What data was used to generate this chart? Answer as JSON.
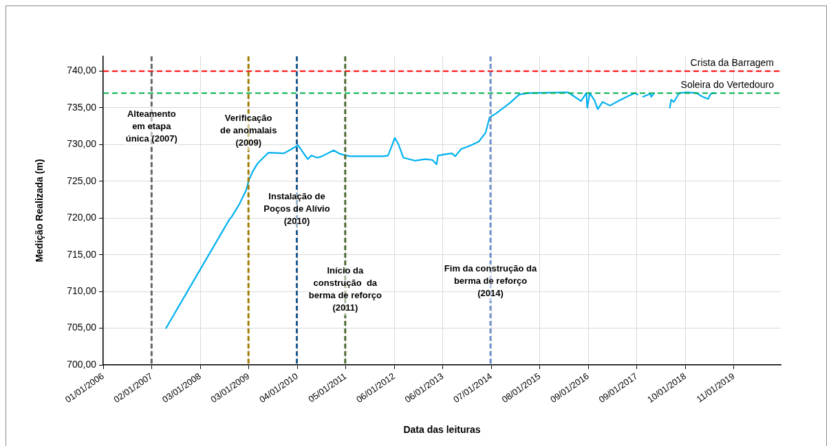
{
  "chart_data": {
    "type": "line",
    "xlabel": "Data das leituras",
    "ylabel": "Medição Realizada (m)",
    "xlim": [
      "2006-01-01",
      "2019-12-31"
    ],
    "xticks": [
      {
        "value": "2006-01-01",
        "label": "01/01/2006"
      },
      {
        "value": "2007-01-02",
        "label": "02/01/2007"
      },
      {
        "value": "2008-01-03",
        "label": "03/01/2008"
      },
      {
        "value": "2009-01-03",
        "label": "03/01/2009"
      },
      {
        "value": "2010-01-04",
        "label": "04/01/2010"
      },
      {
        "value": "2011-01-05",
        "label": "05/01/2011"
      },
      {
        "value": "2012-01-06",
        "label": "06/01/2012"
      },
      {
        "value": "2013-01-06",
        "label": "06/01/2013"
      },
      {
        "value": "2014-01-07",
        "label": "07/01/2014"
      },
      {
        "value": "2015-01-08",
        "label": "08/01/2015"
      },
      {
        "value": "2016-01-09",
        "label": "09/01/2016"
      },
      {
        "value": "2017-01-09",
        "label": "09/01/2017"
      },
      {
        "value": "2018-01-10",
        "label": "10/01/2018"
      },
      {
        "value": "2019-01-11",
        "label": "11/01/2019"
      }
    ],
    "ylim": [
      700,
      742
    ],
    "yticks": [
      {
        "value": 700,
        "label": "700,00"
      },
      {
        "value": 705,
        "label": "705,00"
      },
      {
        "value": 710,
        "label": "710,00"
      },
      {
        "value": 715,
        "label": "715,00"
      },
      {
        "value": 720,
        "label": "720,00"
      },
      {
        "value": 725,
        "label": "725,00"
      },
      {
        "value": 730,
        "label": "730,00"
      },
      {
        "value": 735,
        "label": "735,00"
      },
      {
        "value": 740,
        "label": "740,00"
      }
    ],
    "grid": true,
    "legend": false,
    "marker": "none",
    "line_style": "solid",
    "series": [
      {
        "color": "#00b0f0",
        "x": [
          "2007-04-20",
          "2008-08-10",
          "2008-08-25",
          "2008-10-25",
          "2008-12-15",
          "2009-01-03",
          "2009-02-01",
          "2009-03-10",
          "2009-06-01",
          "2009-09-25",
          "2009-11-15",
          "2009-12-30",
          "2010-01-10",
          "2010-02-25",
          "2010-03-25",
          "2010-04-20",
          "2010-06-05",
          "2010-07-10",
          "2010-10-05",
          "2010-11-25",
          "2011-02-05",
          "2011-05-05",
          "2011-08-01",
          "2011-10-15",
          "2011-11-20",
          "2011-12-10",
          "2012-01-10",
          "2012-02-05",
          "2012-03-15",
          "2012-06-10",
          "2012-08-25",
          "2012-10-20",
          "2012-11-20",
          "2012-12-01",
          "2013-02-05",
          "2013-03-15",
          "2013-04-10",
          "2013-05-25",
          "2013-07-25",
          "2013-10-05",
          "2013-11-25",
          "2013-12-25",
          "2014-02-10",
          "2014-05-30",
          "2014-08-05",
          "2014-10-15",
          "2015-08-10",
          "2015-09-20",
          "2015-11-15",
          "2015-12-25",
          "2016-01-01",
          "2016-01-20",
          "2016-02-25",
          "2016-03-20",
          "2016-04-25",
          "2016-06-20",
          "2016-08-20",
          "2016-11-05",
          "2016-12-25",
          "2017-01-15",
          "2017-02-01",
          "2017-02-25",
          "2017-04-20",
          "2017-04-28",
          "2017-05-20",
          "2017-07-01",
          "2017-09-15",
          "2017-09-25",
          "2017-10-15",
          "2017-11-25",
          "2018-01-25",
          "2018-04-05",
          "2018-05-20",
          "2018-07-01",
          "2018-07-20",
          "2018-08-20"
        ],
        "values": [
          705,
          719.8,
          720.1,
          721.9,
          723.8,
          725.1,
          726.3,
          727.4,
          728.9,
          728.8,
          729.3,
          729.8,
          729.9,
          728.7,
          728,
          728.5,
          728.2,
          728.4,
          729.2,
          728.7,
          728.4,
          728.4,
          728.4,
          728.4,
          728.5,
          729.4,
          730.9,
          730.1,
          728.2,
          727.8,
          728,
          727.9,
          727.3,
          728.5,
          728.7,
          728.8,
          728.4,
          729.4,
          729.8,
          730.4,
          731.6,
          733.7,
          734.2,
          735.7,
          736.8,
          737,
          737.1,
          736.6,
          735.9,
          737,
          735,
          737,
          736,
          734.8,
          735.8,
          735.3,
          735.9,
          736.6,
          737,
          736.8,
          null,
          736.5,
          736.9,
          736.5,
          737,
          null,
          735,
          736.1,
          735.8,
          737,
          737.1,
          737,
          736.5,
          736.2,
          736.9,
          737
        ]
      }
    ],
    "ref_lines": [
      {
        "axis": "y",
        "value": 740,
        "label": "Crista da Barragem",
        "color": "#ff0000",
        "line_style": "dashed"
      },
      {
        "axis": "y",
        "value": 737,
        "label": "Soleira do Vertedouro",
        "color": "#00b050",
        "line_style": "dashed"
      },
      {
        "axis": "x",
        "value": "2007-01-01",
        "label": "Alteamento em etapa única (2007)",
        "color": "#666666",
        "line_style": "dashed"
      },
      {
        "axis": "x",
        "value": "2009-01-01",
        "label": "Verificação de anomalais (2009)",
        "color": "#a07c00",
        "line_style": "dashed"
      },
      {
        "axis": "x",
        "value": "2010-01-01",
        "label": "Instalação de Poços de Alívio (2010)",
        "color": "#1f5a8c",
        "line_style": "dashed"
      },
      {
        "axis": "x",
        "value": "2011-01-01",
        "label": "Início da construção  da berma de reforço (2011)",
        "color": "#4a6b2e",
        "line_style": "dashed"
      },
      {
        "axis": "x",
        "value": "2014-01-01",
        "label": "Fim da construção da berma de reforço (2014)",
        "color": "#7090d0",
        "line_style": "dashed"
      }
    ]
  }
}
